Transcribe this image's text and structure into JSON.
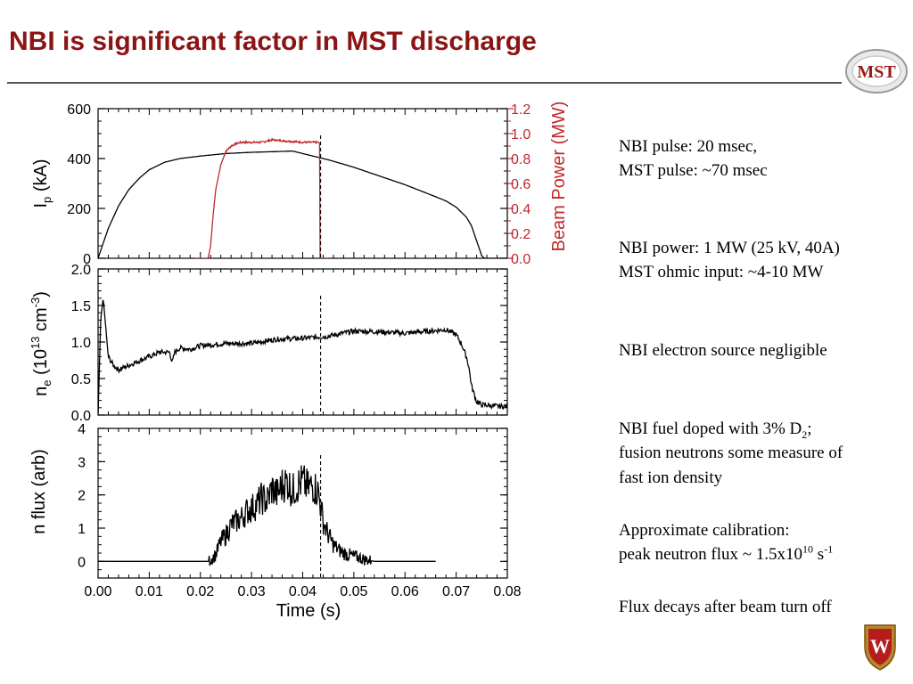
{
  "slide": {
    "title": "NBI is significant factor in MST discharge",
    "logo_text": "MST",
    "crest_letter": "W"
  },
  "notes": {
    "pulse_line1": "NBI pulse: 20 msec,",
    "pulse_line2": "MST pulse:  ~70 msec",
    "power_line1": "NBI power: 1 MW (25 kV, 40A)",
    "power_line2": "MST ohmic input:  ~4-10 MW",
    "electron_line": "NBI electron source negligible",
    "fuel_line1_pre": "NBI fuel doped with 3% D",
    "fuel_line1_sub": "2",
    "fuel_line1_post": ";",
    "fuel_line2": "fusion neutrons some measure of",
    "fuel_line3": "fast ion density",
    "calib_line1": "Approximate calibration:",
    "calib_line2_pre": "peak neutron flux ~ 1.5x10",
    "calib_line2_sup": "10",
    "calib_line2_mid": " s",
    "calib_line2_sup2": "-1",
    "decay_line": "Flux decays after beam turn off"
  },
  "colors": {
    "title": "#8b1414",
    "beam_power": "#c0282d",
    "trace": "#000000"
  },
  "chart_data": [
    {
      "type": "line",
      "panel": "top",
      "ylabel_main": "I",
      "ylabel_sub": "p",
      "ylabel_tail": " (kA)",
      "y2label": "Beam Power (MW)",
      "xlim": [
        0.0,
        0.08
      ],
      "ylim": [
        0,
        600
      ],
      "y2lim": [
        0.0,
        1.2
      ],
      "yticks": [
        "0",
        "200",
        "400",
        "600"
      ],
      "y2ticks": [
        "0.0",
        "0.2",
        "0.4",
        "0.6",
        "0.8",
        "1.0",
        "1.2"
      ],
      "beam_off_time": 0.0435,
      "series": [
        {
          "axis": "left",
          "x": [
            0.0,
            0.002,
            0.004,
            0.006,
            0.008,
            0.01,
            0.013,
            0.016,
            0.02,
            0.025,
            0.03,
            0.035,
            0.038,
            0.04,
            0.045,
            0.05,
            0.055,
            0.06,
            0.065,
            0.068,
            0.07,
            0.072,
            0.073,
            0.074,
            0.075,
            0.0755,
            0.08
          ],
          "values": [
            0,
            120,
            210,
            275,
            320,
            355,
            385,
            400,
            410,
            420,
            425,
            428,
            430,
            420,
            395,
            365,
            330,
            295,
            255,
            230,
            205,
            165,
            130,
            70,
            10,
            0,
            0
          ]
        },
        {
          "axis": "right",
          "x": [
            0.019,
            0.0215,
            0.022,
            0.0225,
            0.023,
            0.024,
            0.025,
            0.026,
            0.027,
            0.028,
            0.03,
            0.032,
            0.034,
            0.037,
            0.04,
            0.043,
            0.0433,
            0.0434,
            0.0436,
            0.045
          ],
          "values": [
            0.0,
            0.0,
            0.1,
            0.35,
            0.55,
            0.75,
            0.86,
            0.9,
            0.92,
            0.93,
            0.93,
            0.93,
            0.95,
            0.94,
            0.93,
            0.93,
            0.92,
            0.0,
            0.0,
            0.0
          ]
        }
      ]
    },
    {
      "type": "line",
      "panel": "middle",
      "ylabel_main": "n",
      "ylabel_sub": "e",
      "ylabel_paren": " (10",
      "ylabel_sup": "13",
      "ylabel_unit": " cm",
      "ylabel_sup2": "-3",
      "ylabel_close": ")",
      "xlim": [
        0.0,
        0.08
      ],
      "ylim": [
        0.0,
        2.0
      ],
      "yticks": [
        "0.0",
        "0.5",
        "1.0",
        "1.5",
        "2.0"
      ],
      "series": [
        {
          "x": [
            0.0,
            0.0005,
            0.001,
            0.0015,
            0.002,
            0.003,
            0.004,
            0.006,
            0.008,
            0.01,
            0.012,
            0.014,
            0.0145,
            0.015,
            0.016,
            0.018,
            0.02,
            0.025,
            0.03,
            0.035,
            0.04,
            0.045,
            0.05,
            0.055,
            0.06,
            0.065,
            0.068,
            0.07,
            0.071,
            0.072,
            0.0725,
            0.073,
            0.074,
            0.075,
            0.078,
            0.08
          ],
          "values": [
            0.0,
            1.3,
            1.6,
            1.2,
            0.8,
            0.68,
            0.62,
            0.68,
            0.74,
            0.8,
            0.86,
            0.86,
            0.72,
            0.86,
            0.92,
            0.9,
            0.95,
            0.98,
            0.98,
            1.04,
            1.05,
            1.08,
            1.15,
            1.14,
            1.12,
            1.15,
            1.17,
            1.1,
            0.98,
            0.8,
            0.65,
            0.4,
            0.18,
            0.14,
            0.12,
            0.12
          ]
        }
      ]
    },
    {
      "type": "line",
      "panel": "bottom",
      "ylabel": "n flux (arb)",
      "xlabel": "Time (s)",
      "xlim": [
        0.0,
        0.08
      ],
      "ylim": [
        -0.5,
        4.0
      ],
      "yticks": [
        "0",
        "1",
        "2",
        "3",
        "4"
      ],
      "xticks": [
        "0.00",
        "0.01",
        "0.02",
        "0.03",
        "0.04",
        "0.05",
        "0.06",
        "0.07",
        "0.08"
      ],
      "series": [
        {
          "x": [
            0.0,
            0.0215,
            0.022,
            0.023,
            0.024,
            0.025,
            0.026,
            0.027,
            0.028,
            0.029,
            0.03,
            0.031,
            0.032,
            0.033,
            0.034,
            0.035,
            0.036,
            0.037,
            0.038,
            0.039,
            0.04,
            0.041,
            0.042,
            0.043,
            0.0435,
            0.044,
            0.045,
            0.046,
            0.047,
            0.048,
            0.049,
            0.05,
            0.051,
            0.052,
            0.053,
            0.054,
            0.066
          ],
          "values": [
            0.0,
            0.0,
            0.05,
            0.2,
            0.6,
            0.8,
            1.1,
            1.2,
            1.3,
            1.5,
            1.6,
            1.7,
            1.9,
            1.8,
            2.2,
            2.0,
            2.3,
            2.4,
            2.1,
            2.3,
            2.4,
            2.2,
            2.3,
            2.1,
            1.7,
            1.2,
            0.8,
            0.5,
            0.35,
            0.25,
            0.2,
            0.15,
            0.12,
            0.06,
            0.03,
            0.0,
            0.0
          ]
        }
      ]
    }
  ]
}
